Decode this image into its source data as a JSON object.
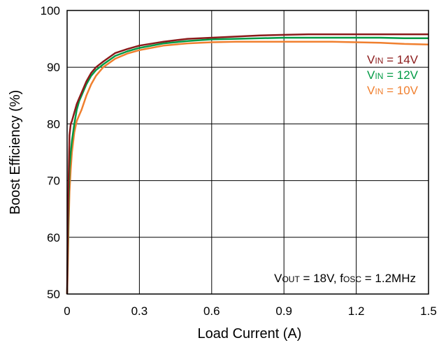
{
  "chart_data": {
    "type": "line",
    "title": "",
    "xlabel": "Load Current (A)",
    "ylabel": "Boost Efficiency (%)",
    "xlim": [
      0,
      1.5
    ],
    "ylim": [
      50,
      100
    ],
    "xticks": [
      0,
      0.3,
      0.6,
      0.9,
      1.2,
      1.5
    ],
    "xtick_labels": [
      "0",
      "0.3",
      "0.6",
      "0.9",
      "1.2",
      "1.5"
    ],
    "yticks": [
      50,
      60,
      70,
      80,
      90,
      100
    ],
    "ytick_labels": [
      "50",
      "60",
      "70",
      "80",
      "90",
      "100"
    ],
    "grid": true,
    "legend_position": "top-right",
    "annotation": {
      "vout_label_main": "V",
      "vout_label_sub": "OUT",
      "vout_value": " = 18V, f",
      "fosc_label_sub": "OSC",
      "fosc_value": " = 1.2MHz"
    },
    "series": [
      {
        "name": "14V",
        "legend_main": "V",
        "legend_sub": "IN",
        "legend_suffix": " = 14V",
        "color": "#8B1A1A",
        "x": [
          0.0,
          0.003,
          0.006,
          0.01,
          0.015,
          0.02,
          0.03,
          0.04,
          0.05,
          0.06,
          0.08,
          0.1,
          0.12,
          0.15,
          0.2,
          0.25,
          0.3,
          0.4,
          0.5,
          0.6,
          0.7,
          0.8,
          0.9,
          1.0,
          1.1,
          1.2,
          1.3,
          1.4,
          1.5
        ],
        "y": [
          50.0,
          62.0,
          70.0,
          78.0,
          80.0,
          80.5,
          82.0,
          83.5,
          84.5,
          85.5,
          87.5,
          89.0,
          90.0,
          91.0,
          92.5,
          93.2,
          93.8,
          94.5,
          95.0,
          95.2,
          95.4,
          95.6,
          95.7,
          95.8,
          95.8,
          95.8,
          95.8,
          95.8,
          95.8
        ]
      },
      {
        "name": "12V",
        "legend_main": "V",
        "legend_sub": "IN",
        "legend_suffix": " = 12V",
        "color": "#009A44",
        "x": [
          0.0,
          0.003,
          0.006,
          0.01,
          0.015,
          0.02,
          0.03,
          0.04,
          0.05,
          0.06,
          0.08,
          0.1,
          0.12,
          0.15,
          0.2,
          0.25,
          0.3,
          0.4,
          0.5,
          0.6,
          0.7,
          0.8,
          0.9,
          1.0,
          1.1,
          1.2,
          1.3,
          1.4,
          1.5
        ],
        "y": [
          50.0,
          58.0,
          66.0,
          72.0,
          75.0,
          77.0,
          80.0,
          82.5,
          84.0,
          85.0,
          87.0,
          88.5,
          89.5,
          90.5,
          92.0,
          92.8,
          93.4,
          94.2,
          94.6,
          94.9,
          95.0,
          95.1,
          95.2,
          95.2,
          95.2,
          95.2,
          95.2,
          95.1,
          95.1
        ]
      },
      {
        "name": "10V",
        "legend_main": "V",
        "legend_sub": "IN",
        "legend_suffix": " = 10V",
        "color": "#F07F2E",
        "x": [
          0.0,
          0.003,
          0.006,
          0.01,
          0.015,
          0.02,
          0.03,
          0.04,
          0.05,
          0.06,
          0.08,
          0.1,
          0.12,
          0.15,
          0.2,
          0.25,
          0.3,
          0.4,
          0.5,
          0.6,
          0.7,
          0.8,
          0.9,
          1.0,
          1.1,
          1.2,
          1.3,
          1.4,
          1.5
        ],
        "y": [
          50.0,
          55.0,
          62.0,
          68.0,
          72.0,
          75.0,
          78.5,
          80.5,
          81.5,
          82.5,
          85.0,
          87.0,
          88.5,
          90.0,
          91.5,
          92.4,
          93.0,
          93.8,
          94.2,
          94.4,
          94.5,
          94.5,
          94.5,
          94.5,
          94.5,
          94.4,
          94.3,
          94.1,
          94.0
        ]
      }
    ]
  }
}
